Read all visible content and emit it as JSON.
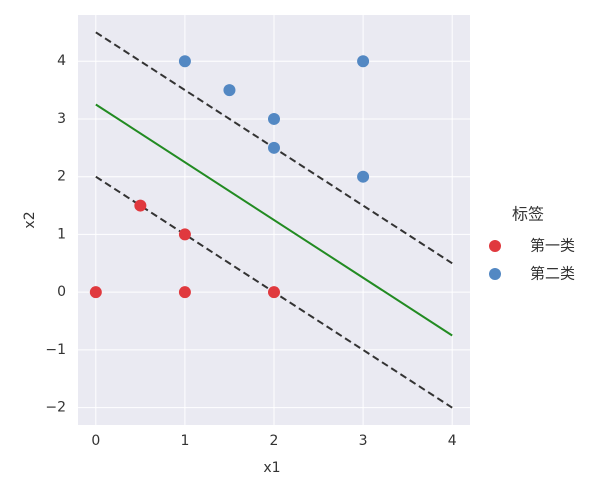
{
  "chart_data": {
    "type": "scatter",
    "x_label": "x1",
    "y_label": "x2",
    "legend_title": "标签",
    "legend_position": "right",
    "grid": true,
    "xlim": [
      -0.2,
      4.2
    ],
    "xticks": [
      0,
      1,
      2,
      3,
      4
    ],
    "ylim": [
      -2.3,
      4.8
    ],
    "yticks": [
      {
        "value": -2,
        "label": "−2"
      },
      {
        "value": -1,
        "label": "−1"
      },
      0,
      1,
      2,
      3,
      4
    ],
    "series": [
      {
        "name": "第一类",
        "color": "#e0393e",
        "x": [
          0,
          0.5,
          1,
          1,
          2
        ],
        "values": [
          0,
          1.5,
          1,
          0,
          0
        ]
      },
      {
        "name": "第二类",
        "color": "#5388c3",
        "x": [
          1,
          1.5,
          2,
          2,
          3,
          3
        ],
        "values": [
          4,
          3.5,
          3,
          2.5,
          4,
          2
        ]
      }
    ],
    "lines": [
      {
        "color": "#228b22",
        "dashed": false,
        "x": [
          0,
          4
        ],
        "values": [
          3.25,
          -0.75
        ]
      },
      {
        "color": "#333333",
        "dashed": true,
        "x": [
          0,
          4
        ],
        "values": [
          4.5,
          0.5
        ]
      },
      {
        "color": "#333333",
        "dashed": true,
        "x": [
          0,
          4
        ],
        "values": [
          2,
          -2
        ]
      }
    ]
  }
}
